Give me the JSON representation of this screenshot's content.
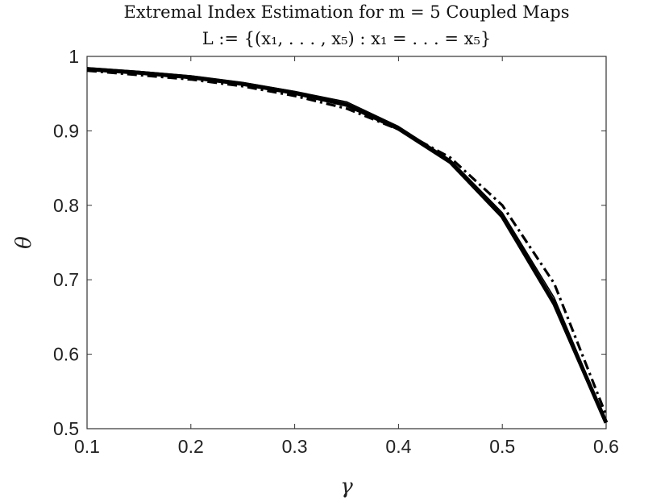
{
  "chart_data": {
    "type": "line",
    "title": "Extremal Index Estimation for m = 5 Coupled Maps",
    "subtitle": "L := {(x₁, . . . , x₅) : x₁ = . . . = x₅}",
    "xlabel": "γ",
    "ylabel": "θ",
    "xlim": [
      0.1,
      0.6
    ],
    "ylim": [
      0.5,
      1
    ],
    "xticks": [
      "0.1",
      "0.2",
      "0.3",
      "0.4",
      "0.5",
      "0.6"
    ],
    "yticks": [
      "0.5",
      "0.6",
      "0.7",
      "0.8",
      "0.9",
      "1"
    ],
    "grid": false,
    "legend": "none",
    "x": [
      0.1,
      0.15,
      0.2,
      0.25,
      0.3,
      0.35,
      0.4,
      0.45,
      0.5,
      0.55,
      0.6
    ],
    "series": [
      {
        "style": "thick-solid",
        "values": [
          0.983,
          0.978,
          0.972,
          0.963,
          0.951,
          0.935,
          0.903,
          0.858,
          0.785,
          0.668,
          0.508
        ]
      },
      {
        "style": "thin-solid",
        "values": [
          0.985,
          0.98,
          0.974,
          0.965,
          0.953,
          0.939,
          0.906,
          0.861,
          0.79,
          0.676,
          0.51
        ]
      },
      {
        "style": "thin-solid",
        "values": [
          0.984,
          0.979,
          0.973,
          0.964,
          0.952,
          0.937,
          0.904,
          0.859,
          0.787,
          0.672,
          0.512
        ]
      },
      {
        "style": "dash-dot",
        "values": [
          0.981,
          0.975,
          0.969,
          0.96,
          0.947,
          0.93,
          0.902,
          0.864,
          0.8,
          0.695,
          0.518
        ]
      }
    ]
  }
}
